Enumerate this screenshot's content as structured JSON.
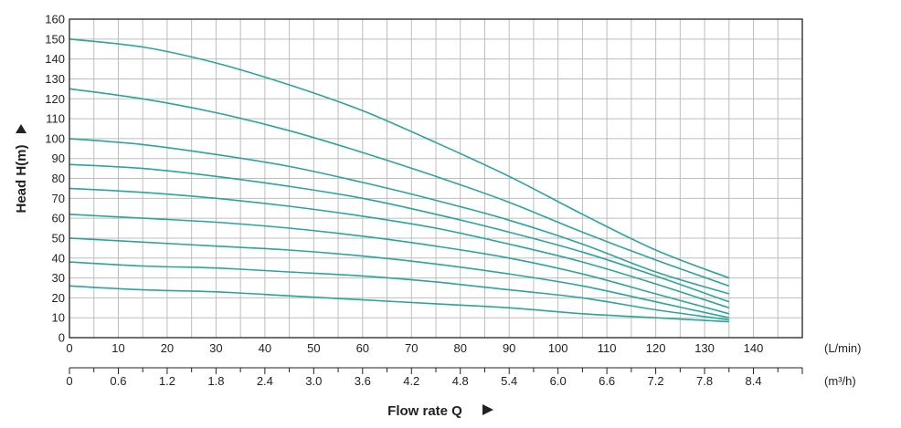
{
  "chart_data": {
    "type": "line",
    "ylabel": "Head H(m)",
    "xlabel": "Flow rate Q",
    "x_unit": "(L/min)",
    "x2_unit": "(m³/h)",
    "xlim": [
      0,
      150
    ],
    "ylim": [
      0,
      160
    ],
    "x_ticks": [
      0,
      10,
      20,
      30,
      40,
      50,
      60,
      70,
      80,
      90,
      100,
      110,
      120,
      130,
      140
    ],
    "y_ticks": [
      0,
      10,
      20,
      30,
      40,
      50,
      60,
      70,
      80,
      90,
      100,
      110,
      120,
      130,
      140,
      150,
      160
    ],
    "x2_ticks": [
      "0",
      "0.6",
      "1.2",
      "1.8",
      "2.4",
      "3.0",
      "3.6",
      "4.2",
      "4.8",
      "5.4",
      "6.0",
      "6.6",
      "7.2",
      "7.8",
      "8.4"
    ],
    "x2_values": [
      0,
      0.6,
      1.2,
      1.8,
      2.4,
      3.0,
      3.6,
      4.2,
      4.8,
      5.4,
      6.0,
      6.6,
      7.2,
      7.8,
      8.4
    ],
    "x2_lim": [
      0,
      9.0
    ],
    "grid": true,
    "series_color": "#2aa59c",
    "x": [
      0,
      15,
      30,
      45,
      60,
      75,
      90,
      105,
      120,
      135
    ],
    "series": [
      {
        "values": [
          150,
          146,
          138,
          127,
          114,
          98,
          81,
          62,
          44,
          30
        ]
      },
      {
        "values": [
          125,
          120,
          113,
          104,
          93,
          81,
          68,
          53,
          39,
          26
        ]
      },
      {
        "values": [
          100,
          97,
          92,
          86,
          78,
          69,
          59,
          47,
          33,
          22
        ]
      },
      {
        "values": [
          87,
          85,
          81,
          76,
          70,
          62,
          53,
          43,
          31,
          18
        ]
      },
      {
        "values": [
          75,
          73,
          70,
          66,
          61,
          55,
          47,
          38,
          27,
          15
        ]
      },
      {
        "values": [
          62,
          60,
          58,
          55,
          51,
          46,
          40,
          32,
          22,
          12
        ]
      },
      {
        "values": [
          50,
          48,
          46,
          44,
          41,
          37,
          32,
          26,
          18,
          10
        ]
      },
      {
        "values": [
          38,
          36,
          35,
          33,
          31,
          28,
          24,
          20,
          14,
          9
        ]
      },
      {
        "values": [
          26,
          24,
          23,
          21,
          19,
          17,
          15,
          12,
          10,
          8
        ]
      }
    ]
  }
}
